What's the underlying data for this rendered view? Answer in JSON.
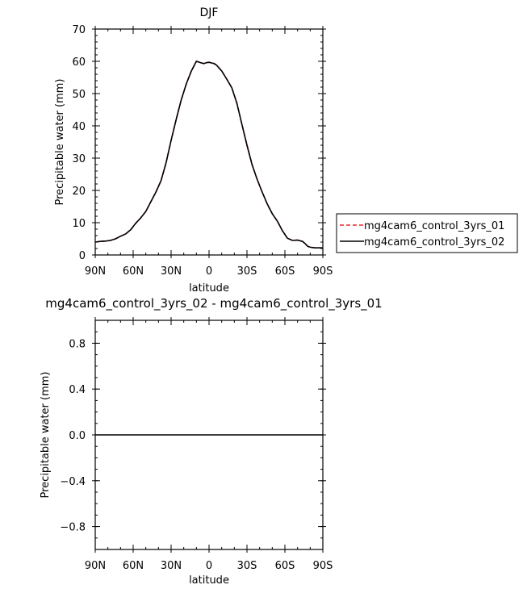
{
  "chart_data": [
    {
      "type": "line",
      "title": "DJF",
      "xlabel": "latitude",
      "ylabel": "Precipitable water (mm)",
      "xlim": [
        90,
        -90
      ],
      "ylim": [
        0,
        70
      ],
      "x_tick_values": [
        90,
        60,
        30,
        0,
        -30,
        -60,
        -90
      ],
      "x_tick_labels": [
        "90N",
        "60N",
        "30N",
        "0",
        "30S",
        "60S",
        "90S"
      ],
      "y_ticks": [
        0,
        10,
        20,
        30,
        40,
        50,
        60,
        70
      ],
      "y_tick_labels": [
        "0",
        "10",
        "20",
        "30",
        "40",
        "50",
        "60",
        "70"
      ],
      "legend_position": "right",
      "x": [
        90,
        86,
        82,
        78,
        74,
        70,
        66,
        62,
        58,
        54,
        50,
        46,
        42,
        38,
        34,
        30,
        26,
        22,
        18,
        14,
        10,
        6,
        4,
        2,
        0,
        -2,
        -4,
        -6,
        -10,
        -14,
        -18,
        -22,
        -26,
        -30,
        -34,
        -38,
        -42,
        -46,
        -50,
        -54,
        -58,
        -62,
        -66,
        -70,
        -74,
        -76,
        -78,
        -80,
        -84,
        -86,
        -88,
        -90
      ],
      "series": [
        {
          "name": "mg4cam6_control_3yrs_01",
          "color": "#e8262d",
          "dash": "dashed",
          "values": [
            4.0,
            4.2,
            4.3,
            4.5,
            5.0,
            5.8,
            6.5,
            7.8,
            9.8,
            11.5,
            13.5,
            16.5,
            19.5,
            23.0,
            28.5,
            35.5,
            42.0,
            48.0,
            53.0,
            57.0,
            60.0,
            59.5,
            59.3,
            59.6,
            59.7,
            59.5,
            59.3,
            58.8,
            57.0,
            54.5,
            51.8,
            47.0,
            40.5,
            34.0,
            28.0,
            23.5,
            19.5,
            15.8,
            12.8,
            10.5,
            7.5,
            5.2,
            4.5,
            4.6,
            4.2,
            3.5,
            2.7,
            2.4,
            2.2,
            2.2,
            2.2,
            2.2
          ]
        },
        {
          "name": "mg4cam6_control_3yrs_02",
          "color": "#000000",
          "dash": "solid",
          "values": [
            4.0,
            4.2,
            4.3,
            4.5,
            5.0,
            5.8,
            6.5,
            7.8,
            9.8,
            11.5,
            13.5,
            16.5,
            19.5,
            23.0,
            28.5,
            35.5,
            42.0,
            48.0,
            53.0,
            57.0,
            60.0,
            59.5,
            59.3,
            59.6,
            59.7,
            59.5,
            59.3,
            58.8,
            57.0,
            54.5,
            51.8,
            47.0,
            40.5,
            34.0,
            28.0,
            23.5,
            19.5,
            15.8,
            12.8,
            10.5,
            7.5,
            5.2,
            4.5,
            4.6,
            4.2,
            3.5,
            2.7,
            2.4,
            2.2,
            2.2,
            2.2,
            2.2
          ]
        }
      ]
    },
    {
      "type": "line",
      "title": "mg4cam6_control_3yrs_02 - mg4cam6_control_3yrs_01",
      "xlabel": "latitude",
      "ylabel": "Precipitable water (mm)",
      "xlim": [
        90,
        -90
      ],
      "ylim": [
        -1,
        1
      ],
      "x_tick_values": [
        90,
        60,
        30,
        0,
        -30,
        -60,
        -90
      ],
      "x_tick_labels": [
        "90N",
        "60N",
        "30N",
        "0",
        "30S",
        "60S",
        "90S"
      ],
      "y_ticks": [
        -0.8,
        -0.4,
        0.0,
        0.4,
        0.8
      ],
      "y_tick_labels": [
        "-0.8",
        "-0.4",
        "0.0",
        "0.4",
        "0.8"
      ],
      "x": [
        90,
        -90
      ],
      "series": [
        {
          "color": "#000000",
          "dash": "solid",
          "values": [
            0.0,
            0.0
          ]
        }
      ]
    }
  ]
}
